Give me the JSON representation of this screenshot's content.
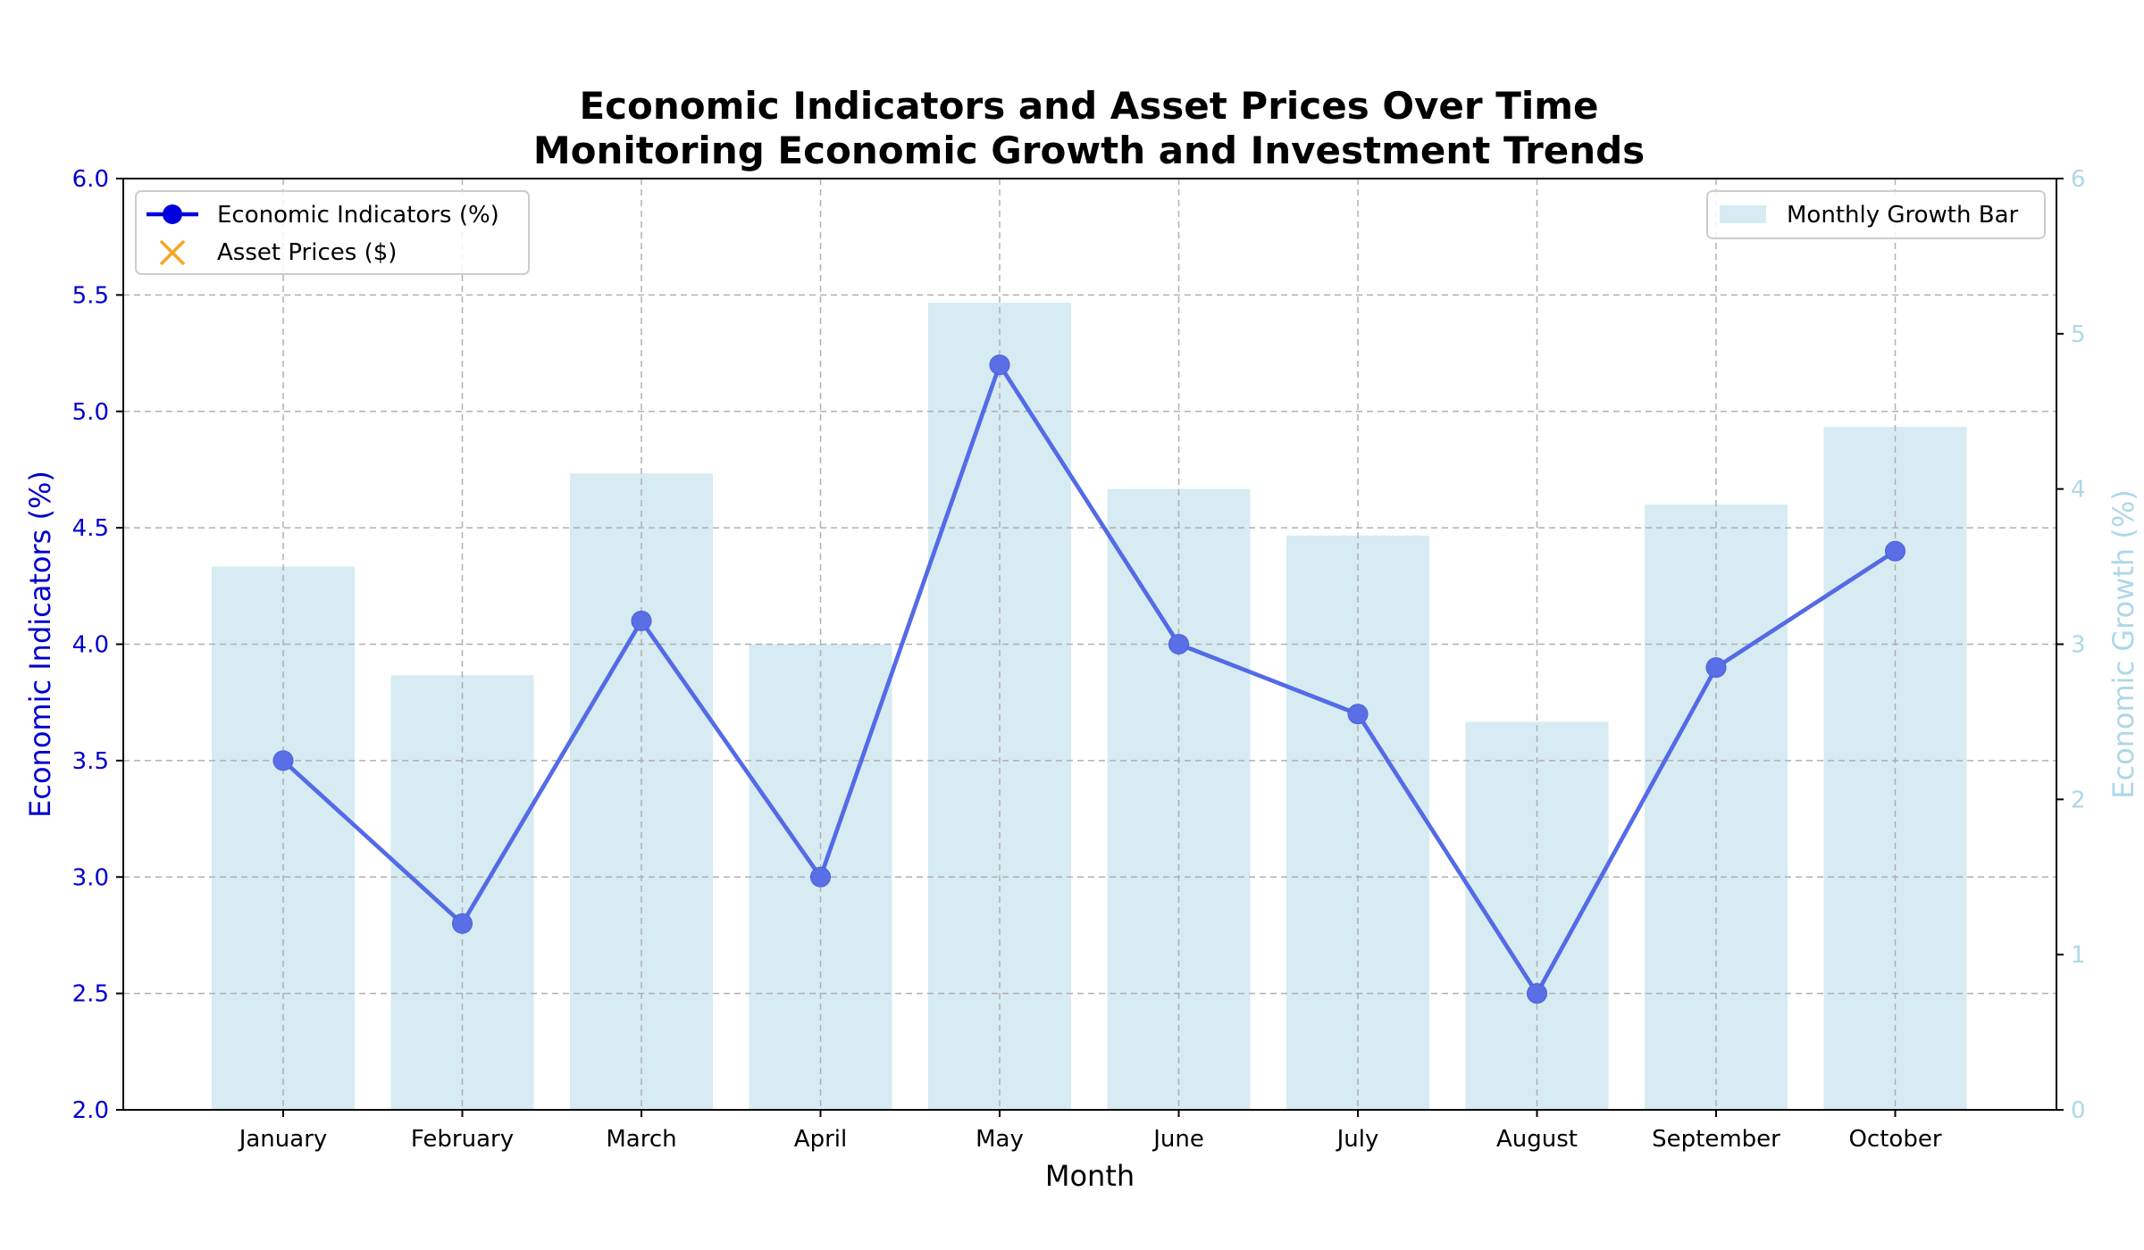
{
  "chart_data": {
    "type": "bar+line",
    "title": "Economic Indicators and Asset Prices Over Time",
    "subtitle": "Monitoring Economic Growth and Investment Trends",
    "xlabel": "Month",
    "ylabel_left": "Economic Indicators (%)",
    "ylabel_right": "Economic Growth (%)",
    "categories": [
      "January",
      "February",
      "March",
      "April",
      "May",
      "June",
      "July",
      "August",
      "September",
      "October"
    ],
    "ylim_left": [
      2.0,
      6.0
    ],
    "ylim_right": [
      0,
      6
    ],
    "yticks_left": [
      "2.0",
      "2.5",
      "3.0",
      "3.5",
      "4.0",
      "4.5",
      "5.0",
      "5.5",
      "6.0"
    ],
    "yticks_right": [
      "0",
      "1",
      "2",
      "3",
      "4",
      "5",
      "6"
    ],
    "grid": true,
    "series": [
      {
        "name": "Economic Indicators (%)",
        "kind": "line",
        "axis": "left",
        "color": "#0000dd",
        "values": [
          3.5,
          2.8,
          4.1,
          3.0,
          5.2,
          4.0,
          3.7,
          2.5,
          3.9,
          4.4
        ]
      },
      {
        "name": "Asset Prices ($)",
        "kind": "scatter",
        "axis": "left",
        "color": "#f5a623",
        "marker": "x",
        "values": []
      },
      {
        "name": "Monthly Growth Bar",
        "kind": "bar",
        "axis": "right",
        "color": "#add8e6",
        "values": [
          3.5,
          2.8,
          4.1,
          3.0,
          5.2,
          4.0,
          3.7,
          2.5,
          3.9,
          4.4
        ]
      }
    ],
    "legend_left_placement": "upper-left",
    "legend_right_placement": "upper-right",
    "colors": {
      "left_axis": "#0000cc",
      "right_axis": "#add8e6",
      "grid": "#b0b0b0"
    }
  }
}
